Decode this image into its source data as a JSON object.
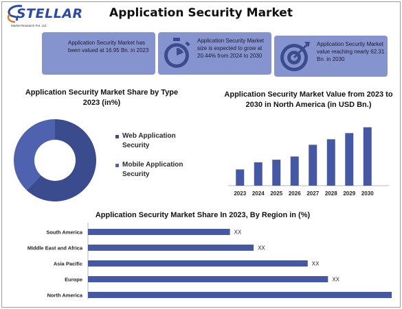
{
  "logo": {
    "word": "STELLAR",
    "sub": "Market Research Pvt. Ltd."
  },
  "title": "Application Security Market",
  "info_boxes": [
    {
      "text": "Application Security Market has been valued at 16.95 Bn. in 2023",
      "icon": "none"
    },
    {
      "text": "Application Security Market size is expected to grow at 20.44% from 2024 to 2030",
      "icon": "stopwatch-icon"
    },
    {
      "text": "Application Security Market value reaching nearly 62.31 Bn. in 2030",
      "icon": "target-icon"
    }
  ],
  "colors": {
    "box": "#8593ce",
    "dark_blue": "#3a4c8e",
    "mid_blue": "#4e62b0",
    "bar": "#4458a6"
  },
  "chart_data": [
    {
      "type": "pie",
      "donut": true,
      "title": "Application Security Market Share by Type 2023 (in%)",
      "labels": [
        "Web Application Security",
        "Mobile Application Security"
      ],
      "values": [
        62,
        38
      ],
      "colors": [
        "#3a4c8e",
        "#4e62b0"
      ],
      "legend": "right"
    },
    {
      "type": "bar",
      "title": "Application Security Market Value from 2023 to 2030 in North America (in USD Bn.)",
      "categories": [
        "2023",
        "2024",
        "2025",
        "2026",
        "2027",
        "2028",
        "2029",
        "2030"
      ],
      "values": [
        5.0,
        7.2,
        8.0,
        9.0,
        12.6,
        14.3,
        16.2,
        18.0
      ],
      "ylim": [
        0,
        19
      ],
      "grid": false,
      "color": "#4458a6"
    },
    {
      "type": "bar",
      "orientation": "horizontal",
      "title": "Application Security Market Share In 2023, By Region in (%)",
      "categories": [
        "South America",
        "Middle East and Africa",
        "Asia Pacific",
        "Europe",
        "North America"
      ],
      "values": [
        42,
        49,
        65,
        71,
        98
      ],
      "data_labels": [
        "XX",
        "XX",
        "XX",
        "XX",
        "XX"
      ],
      "xlim": [
        0,
        100
      ],
      "grid": false,
      "color": "#4458a6"
    }
  ]
}
